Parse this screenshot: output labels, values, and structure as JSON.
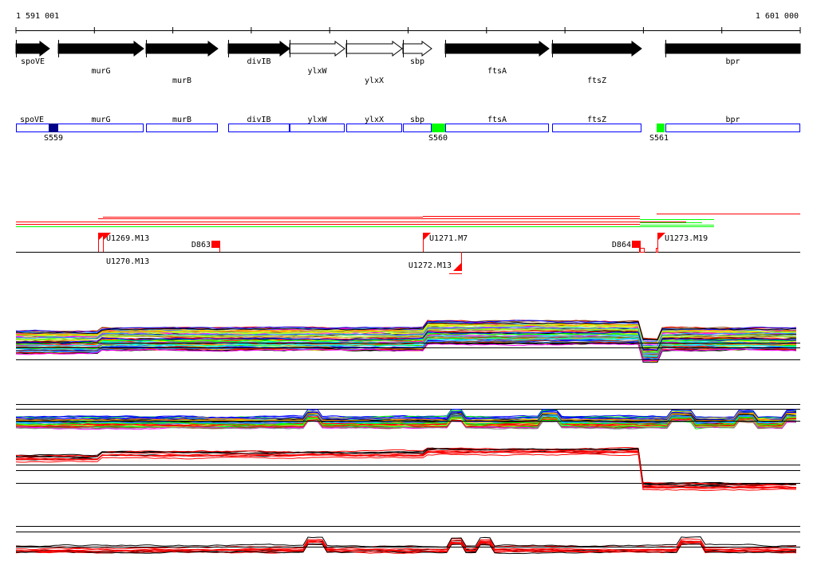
{
  "ruler": {
    "start_label": "1 591 001",
    "end_label": "1 601 000"
  },
  "genes": [
    {
      "name": "spoVE",
      "strand_filled": true
    },
    {
      "name": "murG",
      "strand_filled": true
    },
    {
      "name": "murB",
      "strand_filled": true
    },
    {
      "name": "divIB",
      "strand_filled": true
    },
    {
      "name": "ylxW",
      "strand_filled": false
    },
    {
      "name": "ylxX",
      "strand_filled": false
    },
    {
      "name": "sbp",
      "strand_filled": false
    },
    {
      "name": "ftsA",
      "strand_filled": true
    },
    {
      "name": "ftsZ",
      "strand_filled": true
    },
    {
      "name": "bpr",
      "strand_filled": true
    }
  ],
  "segments": [
    {
      "name": "S559",
      "color": "#00008b"
    },
    {
      "name": "S560",
      "color": "#00ff00"
    },
    {
      "name": "S561",
      "color": "#00ff00"
    }
  ],
  "features": [
    {
      "name": "U1269.M13",
      "type": "upshift"
    },
    {
      "name": "U1270.M13",
      "type": "upshift"
    },
    {
      "name": "D863",
      "type": "downshift"
    },
    {
      "name": "U1271.M7",
      "type": "upshift"
    },
    {
      "name": "U1272.M13",
      "type": "upshift-reverse"
    },
    {
      "name": "D864",
      "type": "downshift"
    },
    {
      "name": "U1273.M19",
      "type": "upshift"
    }
  ],
  "colors": {
    "gene_box": "#0000ff",
    "feature": "#ff0000",
    "interval_red": "#ff0000",
    "interval_green": "#00ff00"
  }
}
